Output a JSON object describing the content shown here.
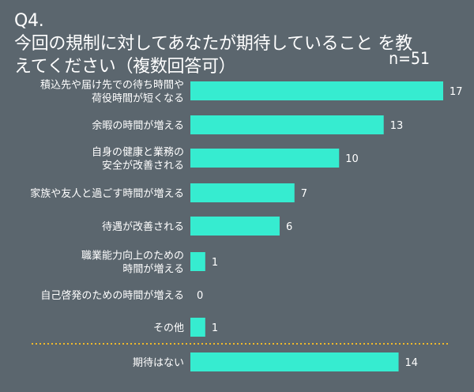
{
  "title": "Q4. 今回の規制に対してあなたが期待していること を教えてください（複数回答可）",
  "sample_size": "n=51",
  "colors": {
    "background": "#5b666e",
    "bar": "#36ecd0",
    "divider": "#f0b92a",
    "text": "#ffffff"
  },
  "chart_data": {
    "type": "bar",
    "orientation": "horizontal",
    "title": "Q4. 今回の規制に対してあなたが期待していること を教えてください（複数回答可）",
    "categories": [
      "積込先や届け先での待ち時間や 荷役時間が短くなる",
      "余暇の時間が増える",
      "自身の健康と業務の 安全が改善される",
      "家族や友人と過ごす時間が増える",
      "待遇が改善される",
      "職業能力向上のための 時間が増える",
      "自己啓発のための時間が増える",
      "その他",
      "期待はない"
    ],
    "values": [
      17,
      13,
      10,
      7,
      6,
      1,
      0,
      1,
      14
    ],
    "xlim": [
      0,
      17
    ],
    "grid": false,
    "legend": "none"
  }
}
